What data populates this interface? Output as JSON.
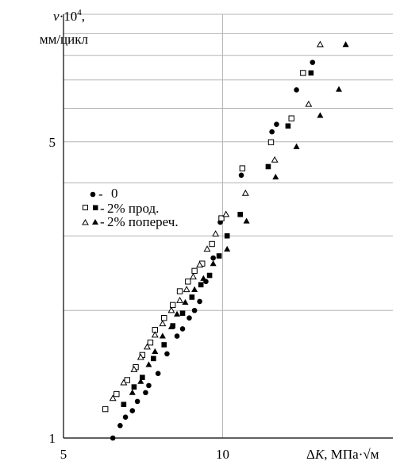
{
  "chart_data": {
    "type": "scatter",
    "xlabel_prefix": "Δ",
    "xlabel_var": "K",
    "xlabel_unit": ", МПа·",
    "xlabel_sqrt": "√м",
    "ylabel_var": "v",
    "ylabel_pow": "·10",
    "ylabel_exp": "4",
    "ylabel_comma": ",",
    "ylabel_unit": "мм/цикл",
    "x_scale": "log",
    "y_scale": "log",
    "xlim": [
      5,
      21
    ],
    "ylim": [
      1,
      10
    ],
    "x_ticks": [
      "5",
      "10"
    ],
    "y_ticks": [
      "1",
      "5"
    ],
    "x_tick_values": [
      5,
      10
    ],
    "y_tick_values": [
      1,
      5
    ],
    "grid": true,
    "legend_position": "middle-left",
    "series": [
      {
        "name": "0",
        "marker_set": [
          "filled-circle"
        ],
        "points": [
          [
            6.2,
            1.0
          ],
          [
            6.4,
            1.07
          ],
          [
            6.55,
            1.12
          ],
          [
            6.75,
            1.16
          ],
          [
            6.9,
            1.22
          ],
          [
            7.15,
            1.28
          ],
          [
            7.25,
            1.33
          ],
          [
            7.55,
            1.42
          ],
          [
            7.85,
            1.58
          ],
          [
            8.2,
            1.74
          ],
          [
            8.4,
            1.81
          ],
          [
            8.65,
            1.92
          ],
          [
            8.85,
            2.0
          ],
          [
            9.05,
            2.1
          ],
          [
            9.3,
            2.34
          ],
          [
            9.6,
            2.66
          ],
          [
            9.9,
            3.23
          ],
          [
            10.85,
            4.17
          ],
          [
            12.4,
            5.28
          ],
          [
            12.65,
            5.5
          ],
          [
            13.8,
            6.63
          ],
          [
            14.8,
            7.7
          ]
        ]
      },
      {
        "name": "2% прод.",
        "marker_set": [
          "open-square",
          "filled-square"
        ],
        "points": [
          [
            6.0,
            1.17
          ],
          [
            6.3,
            1.27
          ],
          [
            6.6,
            1.37
          ],
          [
            6.85,
            1.47
          ],
          [
            7.05,
            1.57
          ],
          [
            7.3,
            1.68
          ],
          [
            7.45,
            1.8
          ],
          [
            7.75,
            1.92
          ],
          [
            8.05,
            2.06
          ],
          [
            8.3,
            2.22
          ],
          [
            8.6,
            2.34
          ],
          [
            8.85,
            2.48
          ],
          [
            9.15,
            2.58
          ],
          [
            9.55,
            2.87
          ],
          [
            9.95,
            3.3
          ],
          [
            10.9,
            4.33
          ],
          [
            12.35,
            4.99
          ],
          [
            13.5,
            5.68
          ],
          [
            14.2,
            7.27
          ],
          [
            6.5,
            1.2
          ],
          [
            6.8,
            1.32
          ],
          [
            7.05,
            1.39
          ],
          [
            7.4,
            1.54
          ],
          [
            7.75,
            1.66
          ],
          [
            8.05,
            1.84
          ],
          [
            8.4,
            1.97
          ],
          [
            8.75,
            2.15
          ],
          [
            9.1,
            2.3
          ],
          [
            9.45,
            2.42
          ],
          [
            9.85,
            2.69
          ],
          [
            10.2,
            3.0
          ],
          [
            10.8,
            3.37
          ],
          [
            12.2,
            4.37
          ],
          [
            13.3,
            5.45
          ],
          [
            14.7,
            7.27
          ]
        ]
      },
      {
        "name": "2% попереч.",
        "marker_set": [
          "open-triangle",
          "filled-triangle"
        ],
        "points": [
          [
            6.2,
            1.24
          ],
          [
            6.5,
            1.35
          ],
          [
            6.8,
            1.45
          ],
          [
            7.0,
            1.55
          ],
          [
            7.2,
            1.64
          ],
          [
            7.45,
            1.75
          ],
          [
            7.7,
            1.86
          ],
          [
            8.0,
            2.0
          ],
          [
            8.3,
            2.11
          ],
          [
            8.55,
            2.24
          ],
          [
            8.8,
            2.4
          ],
          [
            9.05,
            2.56
          ],
          [
            9.35,
            2.79
          ],
          [
            9.7,
            3.03
          ],
          [
            10.15,
            3.37
          ],
          [
            11.05,
            3.78
          ],
          [
            12.55,
            4.53
          ],
          [
            14.55,
            6.13
          ],
          [
            15.3,
            8.48
          ],
          [
            6.75,
            1.28
          ],
          [
            7.0,
            1.36
          ],
          [
            7.25,
            1.49
          ],
          [
            7.45,
            1.6
          ],
          [
            7.7,
            1.74
          ],
          [
            8.0,
            1.83
          ],
          [
            8.2,
            1.96
          ],
          [
            8.5,
            2.09
          ],
          [
            8.85,
            2.24
          ],
          [
            9.2,
            2.38
          ],
          [
            9.6,
            2.58
          ],
          [
            10.2,
            2.79
          ],
          [
            11.1,
            3.25
          ],
          [
            12.6,
            4.13
          ],
          [
            13.8,
            4.87
          ],
          [
            15.3,
            5.77
          ],
          [
            16.6,
            6.65
          ],
          [
            17.1,
            8.48
          ]
        ]
      }
    ]
  },
  "legend": [
    {
      "dash": "-",
      "label": "0"
    },
    {
      "dash": "-",
      "label": "2% прод."
    },
    {
      "dash": "-",
      "label": "2% попереч."
    }
  ]
}
